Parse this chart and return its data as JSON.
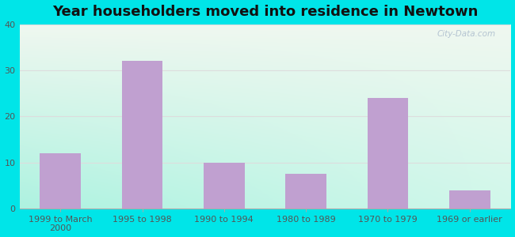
{
  "title": "Year householders moved into residence in Newtown",
  "categories": [
    "1999 to March\n2000",
    "1995 to 1998",
    "1990 to 1994",
    "1980 to 1989",
    "1970 to 1979",
    "1969 or earlier"
  ],
  "values": [
    12,
    32,
    10,
    7.5,
    24,
    4
  ],
  "bar_color": "#c0a0d0",
  "ylim": [
    0,
    40
  ],
  "yticks": [
    0,
    10,
    20,
    30,
    40
  ],
  "background_outer": "#00e5e8",
  "bg_top_left": "#e8f5e8",
  "bg_top_right": "#f5f8f5",
  "bg_bottom_left": "#aaeedd",
  "bg_bottom_right": "#d0f0e8",
  "grid_color": "#dddddd",
  "title_fontsize": 13,
  "tick_fontsize": 8,
  "watermark": "City-Data.com"
}
